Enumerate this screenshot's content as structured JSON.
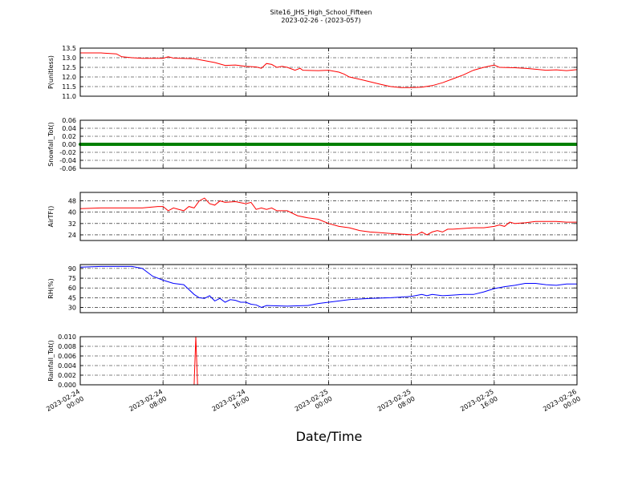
{
  "figure": {
    "title": "Site16_JHS_High_School_Fifteen",
    "subtitle": "2023-02-26 - (2023-057)",
    "xlabel": "Date/Time"
  },
  "chart_data": {
    "type": "line",
    "x_axis": {
      "type": "datetime",
      "range": [
        "2023-02-24 00:00",
        "2023-02-26 00:00"
      ],
      "ticks": [
        {
          "value": "2023-02-24 00:00",
          "line1": "2023-02-24",
          "line2": "00:00"
        },
        {
          "value": "2023-02-24 08:00",
          "line1": "2023-02-24",
          "line2": "08:00"
        },
        {
          "value": "2023-02-24 16:00",
          "line1": "2023-02-24",
          "line2": "16:00"
        },
        {
          "value": "2023-02-25 00:00",
          "line1": "2023-02-25",
          "line2": "00:00"
        },
        {
          "value": "2023-02-25 08:00",
          "line1": "2023-02-25",
          "line2": "08:00"
        },
        {
          "value": "2023-02-25 16:00",
          "line1": "2023-02-25",
          "line2": "16:00"
        },
        {
          "value": "2023-02-26 00:00",
          "line1": "2023-02-26",
          "line2": "00:00"
        }
      ]
    },
    "grid": true,
    "panels": [
      {
        "ylabel": "P(unitless)",
        "ylim": [
          11.0,
          13.5
        ],
        "yticks": [
          "11.0",
          "11.5",
          "12.0",
          "12.5",
          "13.0",
          "13.5"
        ],
        "color": "#ff0000",
        "marker": false,
        "series": [
          [
            "2023-02-24 00:00",
            13.25
          ],
          [
            "2023-02-24 02:00",
            13.25
          ],
          [
            "2023-02-24 03:30",
            13.2
          ],
          [
            "2023-02-24 04:00",
            13.05
          ],
          [
            "2023-02-24 05:00",
            13.0
          ],
          [
            "2023-02-24 06:00",
            12.97
          ],
          [
            "2023-02-24 08:00",
            12.97
          ],
          [
            "2023-02-24 08:30",
            13.05
          ],
          [
            "2023-02-24 09:00",
            12.98
          ],
          [
            "2023-02-24 11:00",
            12.95
          ],
          [
            "2023-02-24 12:00",
            12.85
          ],
          [
            "2023-02-24 13:00",
            12.75
          ],
          [
            "2023-02-24 14:00",
            12.6
          ],
          [
            "2023-02-24 15:00",
            12.62
          ],
          [
            "2023-02-24 16:00",
            12.55
          ],
          [
            "2023-02-24 17:00",
            12.52
          ],
          [
            "2023-02-24 17:30",
            12.45
          ],
          [
            "2023-02-24 18:00",
            12.7
          ],
          [
            "2023-02-24 18:30",
            12.65
          ],
          [
            "2023-02-24 19:00",
            12.5
          ],
          [
            "2023-02-24 19:30",
            12.55
          ],
          [
            "2023-02-24 20:00",
            12.5
          ],
          [
            "2023-02-24 20:45",
            12.35
          ],
          [
            "2023-02-24 21:15",
            12.45
          ],
          [
            "2023-02-24 21:30",
            12.35
          ],
          [
            "2023-02-24 23:00",
            12.33
          ],
          [
            "2023-02-25 00:00",
            12.35
          ],
          [
            "2023-02-25 01:00",
            12.25
          ],
          [
            "2023-02-25 01:30",
            12.15
          ],
          [
            "2023-02-25 02:00",
            12.0
          ],
          [
            "2023-02-25 03:00",
            11.88
          ],
          [
            "2023-02-25 04:00",
            11.75
          ],
          [
            "2023-02-25 05:00",
            11.62
          ],
          [
            "2023-02-25 06:00",
            11.5
          ],
          [
            "2023-02-25 07:00",
            11.45
          ],
          [
            "2023-02-25 08:00",
            11.45
          ],
          [
            "2023-02-25 09:00",
            11.47
          ],
          [
            "2023-02-25 10:00",
            11.55
          ],
          [
            "2023-02-25 11:00",
            11.7
          ],
          [
            "2023-02-25 12:00",
            11.9
          ],
          [
            "2023-02-25 13:00",
            12.1
          ],
          [
            "2023-02-25 14:00",
            12.35
          ],
          [
            "2023-02-25 15:00",
            12.5
          ],
          [
            "2023-02-25 16:00",
            12.62
          ],
          [
            "2023-02-25 16:30",
            12.5
          ],
          [
            "2023-02-25 18:00",
            12.48
          ],
          [
            "2023-02-25 19:00",
            12.45
          ],
          [
            "2023-02-25 20:00",
            12.4
          ],
          [
            "2023-02-25 21:00",
            12.35
          ],
          [
            "2023-02-25 22:00",
            12.37
          ],
          [
            "2023-02-25 23:00",
            12.33
          ],
          [
            "2023-02-26 00:00",
            12.38
          ]
        ]
      },
      {
        "ylabel": "Snowfall_Tot()",
        "ylim": [
          -0.06,
          0.06
        ],
        "yticks": [
          "-0.06",
          "-0.04",
          "-0.02",
          "0.00",
          "0.02",
          "0.04",
          "0.06"
        ],
        "color": "#008000",
        "marker": true,
        "series": [
          [
            "2023-02-24 00:00",
            0.0
          ],
          [
            "2023-02-26 00:00",
            0.0
          ]
        ]
      },
      {
        "ylabel": "AirTF()",
        "ylim": [
          20,
          54
        ],
        "yticks": [
          "24",
          "32",
          "40",
          "48"
        ],
        "color": "#ff0000",
        "marker": false,
        "series": [
          [
            "2023-02-24 00:00",
            42.5
          ],
          [
            "2023-02-24 02:00",
            43
          ],
          [
            "2023-02-24 04:00",
            43
          ],
          [
            "2023-02-24 06:00",
            43
          ],
          [
            "2023-02-24 07:30",
            44
          ],
          [
            "2023-02-24 08:00",
            44
          ],
          [
            "2023-02-24 08:30",
            41
          ],
          [
            "2023-02-24 09:00",
            43
          ],
          [
            "2023-02-24 10:00",
            41
          ],
          [
            "2023-02-24 10:30",
            44
          ],
          [
            "2023-02-24 11:00",
            43
          ],
          [
            "2023-02-24 11:30",
            48
          ],
          [
            "2023-02-24 12:00",
            50
          ],
          [
            "2023-02-24 12:30",
            46
          ],
          [
            "2023-02-24 13:00",
            45
          ],
          [
            "2023-02-24 13:30",
            48
          ],
          [
            "2023-02-24 14:00",
            47
          ],
          [
            "2023-02-24 15:00",
            47.5
          ],
          [
            "2023-02-24 16:00",
            46
          ],
          [
            "2023-02-24 16:30",
            47
          ],
          [
            "2023-02-24 17:00",
            42
          ],
          [
            "2023-02-24 17:30",
            43
          ],
          [
            "2023-02-24 18:00",
            42
          ],
          [
            "2023-02-24 18:30",
            43
          ],
          [
            "2023-02-24 19:00",
            41
          ],
          [
            "2023-02-24 20:00",
            41
          ],
          [
            "2023-02-24 21:00",
            37.5
          ],
          [
            "2023-02-24 22:00",
            36
          ],
          [
            "2023-02-24 23:00",
            35
          ],
          [
            "2023-02-25 00:00",
            32
          ],
          [
            "2023-02-25 01:00",
            30
          ],
          [
            "2023-02-25 02:00",
            29
          ],
          [
            "2023-02-25 03:00",
            27
          ],
          [
            "2023-02-25 04:00",
            26
          ],
          [
            "2023-02-25 05:00",
            25.5
          ],
          [
            "2023-02-25 06:00",
            25
          ],
          [
            "2023-02-25 07:00",
            24.5
          ],
          [
            "2023-02-25 08:00",
            24
          ],
          [
            "2023-02-25 08:30",
            24
          ],
          [
            "2023-02-25 09:00",
            26
          ],
          [
            "2023-02-25 09:30",
            24
          ],
          [
            "2023-02-25 10:00",
            26
          ],
          [
            "2023-02-25 10:30",
            27
          ],
          [
            "2023-02-25 11:00",
            26
          ],
          [
            "2023-02-25 11:30",
            28
          ],
          [
            "2023-02-25 12:00",
            28
          ],
          [
            "2023-02-25 13:00",
            28.5
          ],
          [
            "2023-02-25 14:00",
            29
          ],
          [
            "2023-02-25 15:00",
            29
          ],
          [
            "2023-02-25 16:00",
            30
          ],
          [
            "2023-02-25 16:30",
            31
          ],
          [
            "2023-02-25 17:00",
            30
          ],
          [
            "2023-02-25 17:30",
            33
          ],
          [
            "2023-02-25 18:00",
            32
          ],
          [
            "2023-02-25 19:00",
            32.5
          ],
          [
            "2023-02-25 20:00",
            33.5
          ],
          [
            "2023-02-25 21:00",
            33.5
          ],
          [
            "2023-02-25 22:00",
            33.5
          ],
          [
            "2023-02-25 23:00",
            33
          ],
          [
            "2023-02-26 00:00",
            33
          ]
        ]
      },
      {
        "ylabel": "RH(%)",
        "ylim": [
          22,
          96
        ],
        "yticks": [
          "30",
          "45",
          "60",
          "75",
          "90"
        ],
        "color": "#0000ff",
        "marker": false,
        "series": [
          [
            "2023-02-24 00:00",
            92
          ],
          [
            "2023-02-24 02:00",
            93
          ],
          [
            "2023-02-24 04:00",
            93
          ],
          [
            "2023-02-24 05:00",
            93
          ],
          [
            "2023-02-24 06:00",
            90
          ],
          [
            "2023-02-24 07:00",
            78
          ],
          [
            "2023-02-24 08:00",
            72
          ],
          [
            "2023-02-24 09:00",
            67
          ],
          [
            "2023-02-24 10:00",
            65
          ],
          [
            "2023-02-24 11:00",
            50
          ],
          [
            "2023-02-24 11:30",
            45
          ],
          [
            "2023-02-24 12:00",
            44
          ],
          [
            "2023-02-24 12:30",
            48
          ],
          [
            "2023-02-24 13:00",
            40
          ],
          [
            "2023-02-24 13:30",
            44
          ],
          [
            "2023-02-24 14:00",
            38
          ],
          [
            "2023-02-24 14:30",
            42
          ],
          [
            "2023-02-24 15:00",
            41
          ],
          [
            "2023-02-24 15:30",
            38
          ],
          [
            "2023-02-24 16:00",
            38
          ],
          [
            "2023-02-24 16:30",
            35
          ],
          [
            "2023-02-24 17:00",
            34
          ],
          [
            "2023-02-24 17:30",
            30
          ],
          [
            "2023-02-24 18:00",
            33
          ],
          [
            "2023-02-24 20:00",
            32
          ],
          [
            "2023-02-24 22:00",
            33
          ],
          [
            "2023-02-24 23:00",
            36
          ],
          [
            "2023-02-25 00:00",
            38
          ],
          [
            "2023-02-25 01:00",
            40
          ],
          [
            "2023-02-25 02:00",
            42
          ],
          [
            "2023-02-25 04:00",
            44
          ],
          [
            "2023-02-25 06:00",
            45
          ],
          [
            "2023-02-25 08:00",
            47
          ],
          [
            "2023-02-25 09:00",
            50
          ],
          [
            "2023-02-25 09:30",
            48
          ],
          [
            "2023-02-25 10:00",
            50
          ],
          [
            "2023-02-25 11:00",
            48
          ],
          [
            "2023-02-25 12:00",
            49
          ],
          [
            "2023-02-25 13:00",
            50
          ],
          [
            "2023-02-25 14:00",
            50
          ],
          [
            "2023-02-25 15:00",
            54
          ],
          [
            "2023-02-25 16:00",
            59
          ],
          [
            "2023-02-25 17:00",
            62
          ],
          [
            "2023-02-25 18:00",
            64
          ],
          [
            "2023-02-25 19:00",
            67
          ],
          [
            "2023-02-25 20:00",
            67
          ],
          [
            "2023-02-25 21:00",
            65
          ],
          [
            "2023-02-25 22:00",
            64
          ],
          [
            "2023-02-25 23:00",
            66
          ],
          [
            "2023-02-26 00:00",
            66
          ]
        ]
      },
      {
        "ylabel": "Rainfall_Tot()",
        "ylim": [
          0.0,
          0.01
        ],
        "yticks": [
          "0.000",
          "0.002",
          "0.004",
          "0.006",
          "0.008",
          "0.010"
        ],
        "color": "#ff0000",
        "marker": false,
        "series": [
          [
            "2023-02-24 00:00",
            0.0
          ],
          [
            "2023-02-24 11:00",
            0.0
          ],
          [
            "2023-02-24 11:10",
            0.01
          ],
          [
            "2023-02-24 11:20",
            0.0
          ],
          [
            "2023-02-26 00:00",
            0.0
          ]
        ]
      }
    ]
  }
}
